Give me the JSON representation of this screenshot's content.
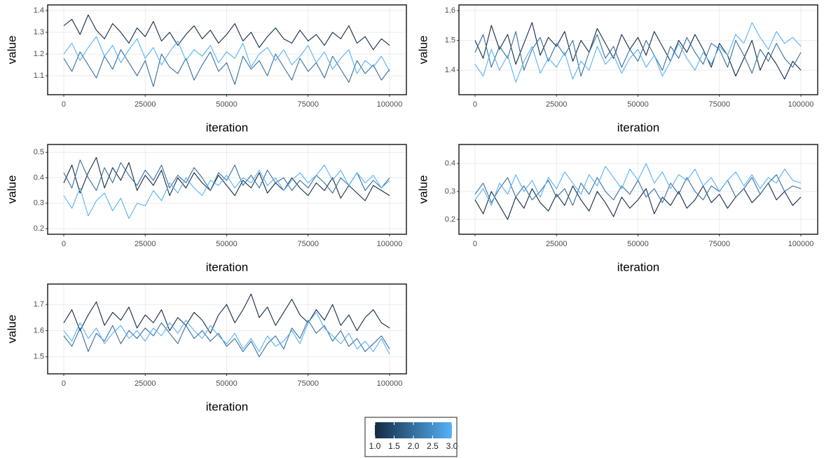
{
  "chart_data": [
    {
      "type": "line",
      "xlabel": "iteration",
      "ylabel": "value",
      "x": [
        0,
        2500,
        5000,
        7500,
        10000,
        12500,
        15000,
        17500,
        20000,
        22500,
        25000,
        27500,
        30000,
        32500,
        35000,
        37500,
        40000,
        42500,
        45000,
        47500,
        50000,
        52500,
        55000,
        57500,
        60000,
        62500,
        65000,
        67500,
        70000,
        72500,
        75000,
        77500,
        80000,
        82500,
        85000,
        87500,
        90000,
        92500,
        95000,
        97500,
        100000
      ],
      "xlim": [
        -4946,
        105161
      ],
      "ylim": [
        1.013,
        1.426
      ],
      "xticks": [
        0,
        25000,
        50000,
        75000,
        100000
      ],
      "yticks": [
        1.1,
        1.2,
        1.3,
        1.4
      ],
      "grid": true,
      "series": [
        {
          "chain": 1,
          "values": [
            1.33,
            1.36,
            1.29,
            1.38,
            1.31,
            1.27,
            1.34,
            1.3,
            1.25,
            1.32,
            1.28,
            1.35,
            1.26,
            1.3,
            1.24,
            1.29,
            1.33,
            1.27,
            1.31,
            1.25,
            1.29,
            1.34,
            1.26,
            1.3,
            1.23,
            1.28,
            1.32,
            1.27,
            1.25,
            1.31,
            1.26,
            1.29,
            1.24,
            1.3,
            1.27,
            1.33,
            1.25,
            1.28,
            1.22,
            1.27,
            1.24
          ]
        },
        {
          "chain": 2,
          "values": [
            1.18,
            1.12,
            1.21,
            1.15,
            1.09,
            1.19,
            1.13,
            1.22,
            1.16,
            1.1,
            1.17,
            1.05,
            1.2,
            1.14,
            1.11,
            1.18,
            1.08,
            1.15,
            1.21,
            1.12,
            1.16,
            1.06,
            1.19,
            1.13,
            1.17,
            1.1,
            1.2,
            1.14,
            1.08,
            1.18,
            1.12,
            1.16,
            1.09,
            1.19,
            1.13,
            1.07,
            1.17,
            1.11,
            1.15,
            1.08,
            1.13
          ]
        },
        {
          "chain": 3,
          "values": [
            1.2,
            1.25,
            1.17,
            1.23,
            1.28,
            1.19,
            1.24,
            1.16,
            1.22,
            1.27,
            1.18,
            1.23,
            1.15,
            1.21,
            1.26,
            1.17,
            1.22,
            1.19,
            1.24,
            1.16,
            1.21,
            1.18,
            1.25,
            1.14,
            1.2,
            1.23,
            1.17,
            1.22,
            1.15,
            1.19,
            1.24,
            1.16,
            1.21,
            1.13,
            1.18,
            1.22,
            1.11,
            1.17,
            1.14,
            1.19,
            1.12
          ]
        }
      ]
    },
    {
      "type": "line",
      "xlabel": "iteration",
      "ylabel": "value",
      "x": [
        0,
        2500,
        5000,
        7500,
        10000,
        12500,
        15000,
        17500,
        20000,
        22500,
        25000,
        27500,
        30000,
        32500,
        35000,
        37500,
        40000,
        42500,
        45000,
        47500,
        50000,
        52500,
        55000,
        57500,
        60000,
        62500,
        65000,
        67500,
        70000,
        72500,
        75000,
        77500,
        80000,
        82500,
        85000,
        87500,
        90000,
        92500,
        95000,
        97500,
        100000
      ],
      "xlim": [
        -4946,
        105161
      ],
      "ylim": [
        1.318,
        1.619
      ],
      "xticks": [
        0,
        25000,
        50000,
        75000,
        100000
      ],
      "yticks": [
        1.4,
        1.5,
        1.6
      ],
      "grid": true,
      "series": [
        {
          "chain": 1,
          "values": [
            1.5,
            1.44,
            1.55,
            1.47,
            1.52,
            1.42,
            1.49,
            1.56,
            1.45,
            1.51,
            1.48,
            1.53,
            1.43,
            1.5,
            1.46,
            1.54,
            1.49,
            1.44,
            1.52,
            1.47,
            1.51,
            1.45,
            1.53,
            1.48,
            1.43,
            1.5,
            1.46,
            1.52,
            1.47,
            1.41,
            1.49,
            1.45,
            1.38,
            1.44,
            1.5,
            1.4,
            1.46,
            1.42,
            1.37,
            1.43,
            1.4
          ]
        },
        {
          "chain": 2,
          "values": [
            1.46,
            1.52,
            1.41,
            1.48,
            1.44,
            1.53,
            1.4,
            1.47,
            1.51,
            1.43,
            1.49,
            1.45,
            1.5,
            1.38,
            1.46,
            1.52,
            1.44,
            1.48,
            1.41,
            1.47,
            1.43,
            1.5,
            1.45,
            1.4,
            1.48,
            1.44,
            1.51,
            1.46,
            1.42,
            1.49,
            1.47,
            1.41,
            1.5,
            1.45,
            1.39,
            1.47,
            1.43,
            1.49,
            1.44,
            1.41,
            1.46
          ]
        },
        {
          "chain": 3,
          "values": [
            1.42,
            1.38,
            1.47,
            1.4,
            1.45,
            1.36,
            1.43,
            1.48,
            1.39,
            1.44,
            1.41,
            1.46,
            1.37,
            1.43,
            1.4,
            1.48,
            1.42,
            1.45,
            1.39,
            1.44,
            1.47,
            1.41,
            1.45,
            1.38,
            1.43,
            1.49,
            1.44,
            1.4,
            1.46,
            1.42,
            1.48,
            1.45,
            1.52,
            1.49,
            1.56,
            1.51,
            1.47,
            1.53,
            1.49,
            1.51,
            1.48
          ]
        }
      ]
    },
    {
      "type": "line",
      "xlabel": "iteration",
      "ylabel": "value",
      "x": [
        0,
        2500,
        5000,
        7500,
        10000,
        12500,
        15000,
        17500,
        20000,
        22500,
        25000,
        27500,
        30000,
        32500,
        35000,
        37500,
        40000,
        42500,
        45000,
        47500,
        50000,
        52500,
        55000,
        57500,
        60000,
        62500,
        65000,
        67500,
        70000,
        72500,
        75000,
        77500,
        80000,
        82500,
        85000,
        87500,
        90000,
        92500,
        95000,
        97500,
        100000
      ],
      "xlim": [
        -4946,
        105161
      ],
      "ylim": [
        0.178,
        0.531
      ],
      "xticks": [
        0,
        25000,
        50000,
        75000,
        100000
      ],
      "yticks": [
        0.2,
        0.3,
        0.4,
        0.5
      ],
      "grid": true,
      "series": [
        {
          "chain": 1,
          "values": [
            0.38,
            0.45,
            0.34,
            0.42,
            0.48,
            0.36,
            0.44,
            0.39,
            0.46,
            0.35,
            0.41,
            0.37,
            0.43,
            0.33,
            0.4,
            0.36,
            0.42,
            0.38,
            0.35,
            0.41,
            0.37,
            0.33,
            0.39,
            0.36,
            0.42,
            0.34,
            0.38,
            0.35,
            0.4,
            0.36,
            0.33,
            0.38,
            0.35,
            0.4,
            0.32,
            0.37,
            0.34,
            0.31,
            0.37,
            0.35,
            0.33
          ]
        },
        {
          "chain": 2,
          "values": [
            0.42,
            0.36,
            0.47,
            0.4,
            0.35,
            0.44,
            0.38,
            0.46,
            0.41,
            0.37,
            0.43,
            0.39,
            0.45,
            0.36,
            0.41,
            0.38,
            0.44,
            0.4,
            0.35,
            0.42,
            0.39,
            0.45,
            0.37,
            0.41,
            0.36,
            0.43,
            0.38,
            0.4,
            0.35,
            0.39,
            0.36,
            0.41,
            0.38,
            0.34,
            0.4,
            0.37,
            0.42,
            0.35,
            0.39,
            0.36,
            0.4
          ]
        },
        {
          "chain": 3,
          "values": [
            0.33,
            0.28,
            0.36,
            0.25,
            0.31,
            0.34,
            0.27,
            0.32,
            0.24,
            0.3,
            0.29,
            0.35,
            0.31,
            0.38,
            0.34,
            0.4,
            0.36,
            0.33,
            0.39,
            0.37,
            0.41,
            0.36,
            0.4,
            0.38,
            0.43,
            0.37,
            0.4,
            0.35,
            0.39,
            0.42,
            0.38,
            0.41,
            0.45,
            0.39,
            0.43,
            0.37,
            0.42,
            0.38,
            0.41,
            0.36,
            0.39
          ]
        }
      ]
    },
    {
      "type": "line",
      "xlabel": "iteration",
      "ylabel": "value",
      "x": [
        0,
        2500,
        5000,
        7500,
        10000,
        12500,
        15000,
        17500,
        20000,
        22500,
        25000,
        27500,
        30000,
        32500,
        35000,
        37500,
        40000,
        42500,
        45000,
        47500,
        50000,
        52500,
        55000,
        57500,
        60000,
        62500,
        65000,
        67500,
        70000,
        72500,
        75000,
        77500,
        80000,
        82500,
        85000,
        87500,
        90000,
        92500,
        95000,
        97500,
        100000
      ],
      "xlim": [
        -4946,
        105161
      ],
      "ylim": [
        0.147,
        0.468
      ],
      "xticks": [
        0,
        25000,
        50000,
        75000,
        100000
      ],
      "yticks": [
        0.2,
        0.3,
        0.4
      ],
      "grid": true,
      "series": [
        {
          "chain": 1,
          "values": [
            0.27,
            0.22,
            0.3,
            0.25,
            0.2,
            0.28,
            0.24,
            0.31,
            0.26,
            0.23,
            0.29,
            0.25,
            0.32,
            0.27,
            0.23,
            0.3,
            0.26,
            0.21,
            0.28,
            0.24,
            0.27,
            0.31,
            0.22,
            0.28,
            0.25,
            0.3,
            0.24,
            0.27,
            0.32,
            0.26,
            0.29,
            0.24,
            0.28,
            0.31,
            0.26,
            0.29,
            0.33,
            0.27,
            0.3,
            0.25,
            0.28
          ]
        },
        {
          "chain": 2,
          "values": [
            0.29,
            0.33,
            0.26,
            0.31,
            0.35,
            0.28,
            0.32,
            0.27,
            0.3,
            0.34,
            0.28,
            0.31,
            0.25,
            0.33,
            0.29,
            0.35,
            0.3,
            0.27,
            0.32,
            0.29,
            0.34,
            0.28,
            0.31,
            0.26,
            0.33,
            0.29,
            0.35,
            0.3,
            0.27,
            0.32,
            0.3,
            0.34,
            0.28,
            0.31,
            0.35,
            0.29,
            0.33,
            0.36,
            0.3,
            0.32,
            0.31
          ]
        },
        {
          "chain": 3,
          "values": [
            0.27,
            0.31,
            0.25,
            0.33,
            0.29,
            0.36,
            0.3,
            0.34,
            0.28,
            0.35,
            0.31,
            0.37,
            0.33,
            0.29,
            0.36,
            0.32,
            0.39,
            0.35,
            0.31,
            0.38,
            0.34,
            0.4,
            0.33,
            0.37,
            0.31,
            0.36,
            0.34,
            0.38,
            0.32,
            0.35,
            0.3,
            0.34,
            0.37,
            0.32,
            0.36,
            0.31,
            0.35,
            0.33,
            0.38,
            0.34,
            0.33
          ]
        }
      ]
    },
    {
      "type": "line",
      "xlabel": "iteration",
      "ylabel": "value",
      "x": [
        0,
        2500,
        5000,
        7500,
        10000,
        12500,
        15000,
        17500,
        20000,
        22500,
        25000,
        27500,
        30000,
        32500,
        35000,
        37500,
        40000,
        42500,
        45000,
        47500,
        50000,
        52500,
        55000,
        57500,
        60000,
        62500,
        65000,
        67500,
        70000,
        72500,
        75000,
        77500,
        80000,
        82500,
        85000,
        87500,
        90000,
        92500,
        95000,
        97500,
        100000
      ],
      "xlim": [
        -4946,
        105161
      ],
      "ylim": [
        1.435,
        1.778
      ],
      "xticks": [
        0,
        25000,
        50000,
        75000,
        100000
      ],
      "yticks": [
        1.5,
        1.6,
        1.7
      ],
      "grid": true,
      "series": [
        {
          "chain": 1,
          "values": [
            1.63,
            1.68,
            1.6,
            1.66,
            1.71,
            1.62,
            1.67,
            1.64,
            1.69,
            1.61,
            1.66,
            1.63,
            1.68,
            1.6,
            1.65,
            1.62,
            1.67,
            1.64,
            1.59,
            1.66,
            1.7,
            1.63,
            1.68,
            1.74,
            1.65,
            1.69,
            1.62,
            1.67,
            1.72,
            1.66,
            1.63,
            1.68,
            1.64,
            1.7,
            1.62,
            1.66,
            1.6,
            1.65,
            1.68,
            1.63,
            1.61
          ]
        },
        {
          "chain": 2,
          "values": [
            1.58,
            1.54,
            1.61,
            1.52,
            1.59,
            1.56,
            1.62,
            1.55,
            1.6,
            1.57,
            1.61,
            1.58,
            1.63,
            1.59,
            1.55,
            1.62,
            1.57,
            1.6,
            1.56,
            1.59,
            1.54,
            1.57,
            1.52,
            1.56,
            1.5,
            1.55,
            1.58,
            1.53,
            1.61,
            1.57,
            1.64,
            1.59,
            1.62,
            1.56,
            1.6,
            1.54,
            1.57,
            1.52,
            1.55,
            1.58,
            1.53
          ]
        },
        {
          "chain": 3,
          "values": [
            1.6,
            1.56,
            1.63,
            1.57,
            1.61,
            1.55,
            1.59,
            1.62,
            1.57,
            1.6,
            1.56,
            1.61,
            1.58,
            1.63,
            1.59,
            1.64,
            1.6,
            1.57,
            1.62,
            1.58,
            1.55,
            1.59,
            1.53,
            1.57,
            1.52,
            1.58,
            1.54,
            1.56,
            1.6,
            1.55,
            1.63,
            1.67,
            1.61,
            1.58,
            1.55,
            1.59,
            1.53,
            1.56,
            1.52,
            1.57,
            1.51
          ]
        }
      ]
    }
  ],
  "legend": {
    "type": "colorbar",
    "lim": [
      1,
      3
    ],
    "colors": [
      "#132B43",
      "#56B1F7"
    ],
    "ticks": [
      {
        "value": 1,
        "label": "1.0"
      },
      1.5,
      {
        "value": 2,
        "label": "2.0"
      },
      2.5,
      {
        "value": 3,
        "label": "3.0"
      }
    ]
  }
}
